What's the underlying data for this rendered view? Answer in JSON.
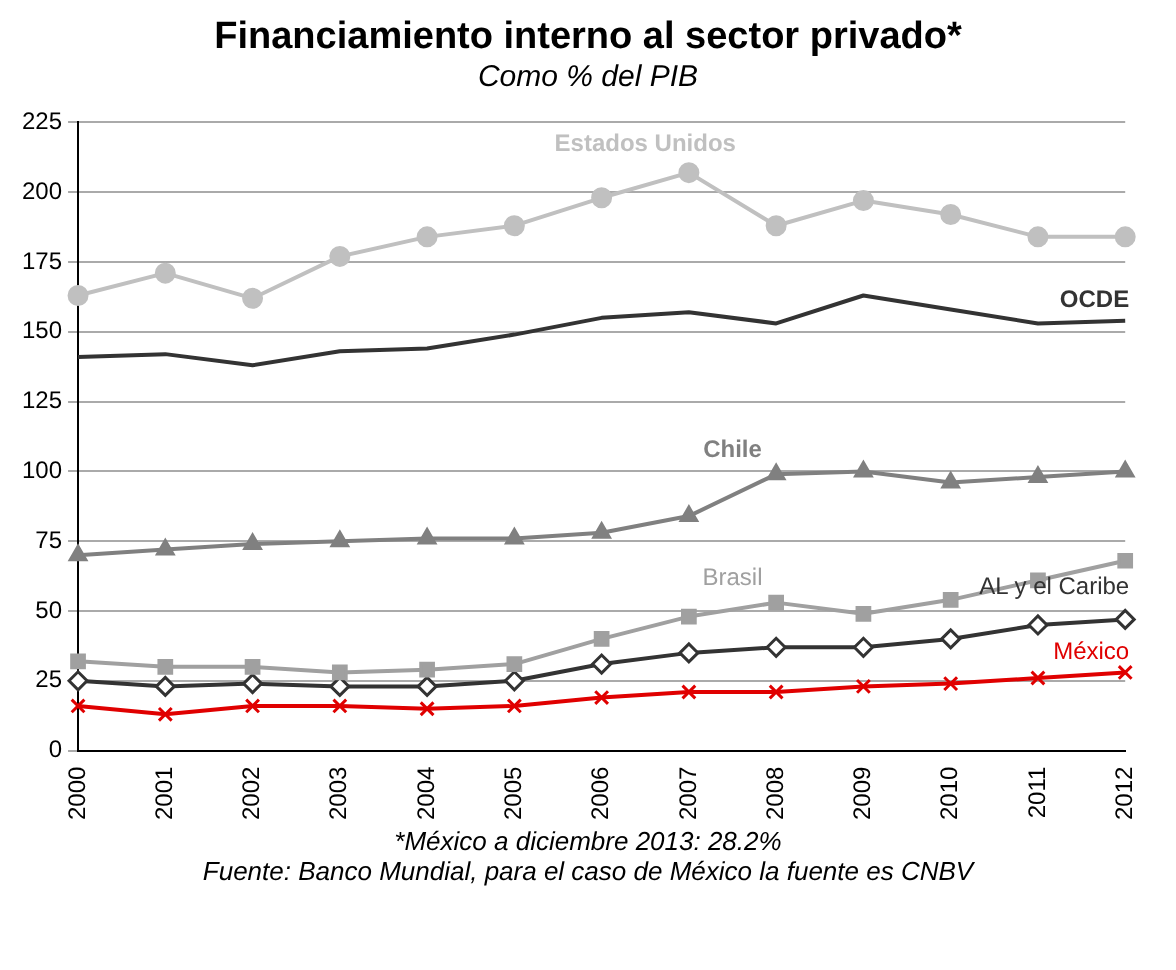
{
  "chart_data": {
    "type": "line",
    "title": "Financiamiento interno al sector privado*",
    "subtitle": "Como % del PIB",
    "categories": [
      "2000",
      "2001",
      "2002",
      "2003",
      "2004",
      "2005",
      "2006",
      "2007",
      "2008",
      "2009",
      "2010",
      "2011",
      "2012"
    ],
    "series": [
      {
        "name": "Estados Unidos",
        "color": "#c0c0c0",
        "marker": "circle",
        "values": [
          163,
          171,
          162,
          177,
          184,
          188,
          198,
          207,
          188,
          197,
          192,
          184,
          184
        ]
      },
      {
        "name": "OCDE",
        "color": "#333333",
        "marker": "none",
        "values": [
          141,
          142,
          138,
          143,
          144,
          149,
          155,
          157,
          153,
          163,
          158,
          153,
          154
        ]
      },
      {
        "name": "Chile",
        "color": "#808080",
        "marker": "triangle",
        "values": [
          70,
          72,
          74,
          75,
          76,
          76,
          78,
          84,
          99,
          100,
          96,
          98,
          100
        ]
      },
      {
        "name": "Brasil",
        "color": "#a0a0a0",
        "marker": "square",
        "values": [
          32,
          30,
          30,
          28,
          29,
          31,
          40,
          48,
          53,
          49,
          54,
          61,
          68
        ]
      },
      {
        "name": "AL y el Caribe",
        "color": "#333333",
        "marker": "diamond",
        "values": [
          25,
          23,
          24,
          23,
          23,
          25,
          31,
          35,
          37,
          37,
          40,
          45,
          47
        ]
      },
      {
        "name": "México",
        "color": "#e00000",
        "marker": "cross",
        "values": [
          16,
          13,
          16,
          16,
          15,
          16,
          19,
          21,
          21,
          23,
          24,
          26,
          28
        ]
      }
    ],
    "ylim": [
      0,
      225
    ],
    "yticks": [
      0,
      25,
      50,
      75,
      100,
      125,
      150,
      175,
      200,
      225
    ],
    "grid": "y",
    "line_style": "solid",
    "legend": false,
    "annotations": [
      "*México a diciembre 2013: 28.2%",
      "Fuente: Banco Mundial, para el caso de México la fuente es CNBV"
    ]
  }
}
